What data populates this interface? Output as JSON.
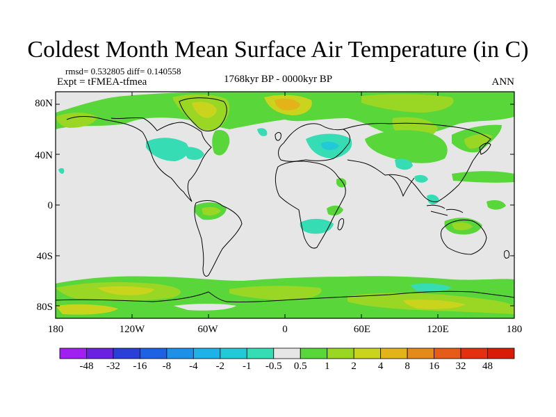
{
  "title": "Coldest Month Mean Surface Air Temperature (in C)",
  "stats": "rmsd= 0.532805  diff= 0.140558",
  "experiment": "Expt = tFMEA-tfmea",
  "period": "1768kyr BP - 0000kyr BP",
  "season": "ANN",
  "lat_labels": [
    "80N",
    "40N",
    "0",
    "40S",
    "80S"
  ],
  "lon_labels": [
    "180",
    "120W",
    "60W",
    "0",
    "60E",
    "120E",
    "180"
  ],
  "colorbar": {
    "labels": [
      "-48",
      "-32",
      "-16",
      "-8",
      "-4",
      "-2",
      "-1",
      "-0.5",
      "0.5",
      "1",
      "2",
      "4",
      "8",
      "16",
      "32",
      "48"
    ],
    "colors": [
      "#a020f0",
      "#6a22e0",
      "#2a3ed8",
      "#1e62e4",
      "#1e90e8",
      "#1eb2e8",
      "#22cad8",
      "#36dcb4",
      "#e6e6e6",
      "#58d63a",
      "#9ad624",
      "#cad41c",
      "#e2b41a",
      "#e48a1a",
      "#e45c18",
      "#e23010",
      "#d81c08"
    ]
  },
  "colors": {
    "ocean_land_neutral": "#e6e6e6",
    "warm_light": "#58d63a",
    "warm_mid": "#9ad624",
    "warm_high": "#cad41c",
    "warm_strong": "#e2b41a",
    "cool_light": "#36dcb4",
    "cool_mid": "#22cad8"
  }
}
